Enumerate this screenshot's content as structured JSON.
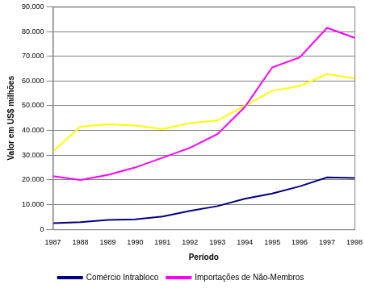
{
  "chart_data": {
    "type": "line",
    "x_label": "Período",
    "y_label": "Valor em US$ milhões",
    "categories": [
      "1987",
      "1988",
      "1989",
      "1990",
      "1991",
      "1992",
      "1993",
      "1994",
      "1995",
      "1996",
      "1997",
      "1998"
    ],
    "series": [
      {
        "name": "Comércio Intrabloco",
        "color": "#000080",
        "values": [
          2500,
          2900,
          3800,
          4100,
          5200,
          7500,
          9400,
          12400,
          14500,
          17400,
          21000,
          20800
        ]
      },
      {
        "name": "Importações de Não-Membros",
        "color": "#ff00ff",
        "values": [
          21500,
          20000,
          22000,
          25000,
          29000,
          33000,
          38500,
          49500,
          65500,
          69500,
          81500,
          77500
        ]
      },
      {
        "color": "#ffff00",
        "values": [
          31500,
          41500,
          42500,
          42000,
          40500,
          43000,
          44000,
          50000,
          56000,
          58000,
          62800,
          61000
        ]
      }
    ],
    "ylim": [
      0,
      90000
    ],
    "yticks": [
      {
        "value": 0,
        "label": "0"
      },
      {
        "value": 10000,
        "label": "10.000"
      },
      {
        "value": 20000,
        "label": "20.000"
      },
      {
        "value": 30000,
        "label": "30.000"
      },
      {
        "value": 40000,
        "label": "40.000"
      },
      {
        "value": 50000,
        "label": "50.000"
      },
      {
        "value": 60000,
        "label": "60.000"
      },
      {
        "value": 70000,
        "label": "70.000"
      },
      {
        "value": 80000,
        "label": "80.000"
      },
      {
        "value": 90000,
        "label": "90.000"
      }
    ],
    "grid": true,
    "legend": "bottom"
  }
}
